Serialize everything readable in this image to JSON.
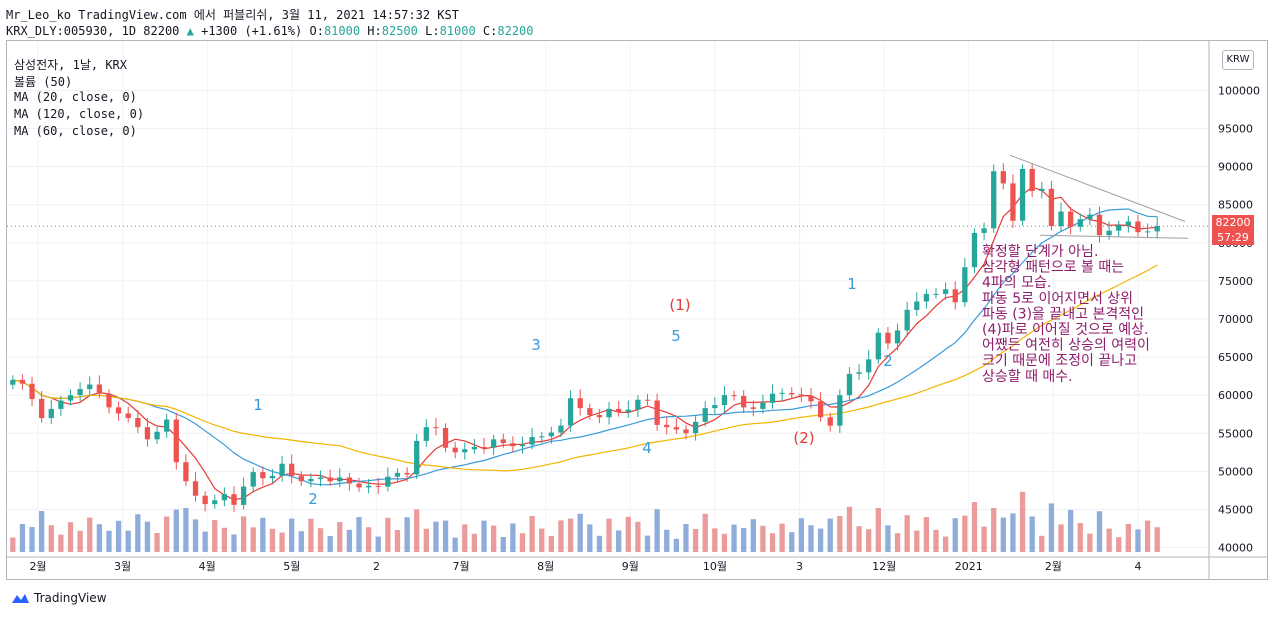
{
  "header": {
    "line1": "Mr_Leo_ko TradingView.com 에서 퍼블리쉬, 3월 11, 2021 14:57:32 KST",
    "symbol": "KRX_DLY:005930, 1D 82200",
    "change": "+1300 (+1.61%)",
    "o_label": "O:",
    "o_val": "81000",
    "h_label": "H:",
    "h_val": "82500",
    "l_label": "L:",
    "l_val": "81000",
    "c_label": "C:",
    "c_val": "82200"
  },
  "legend": [
    "삼성전자, 1날, KRX",
    "볼륨 (50)",
    "MA (20, close, 0)",
    "MA (120, close, 0)",
    "MA (60, close, 0)"
  ],
  "currency": "KRW",
  "price_label": "82200",
  "timer_label": "57:29",
  "colors": {
    "up": "#26a69a",
    "down": "#ef5350",
    "ma20": "#e53935",
    "ma60": "#3a9ad9",
    "ma120": "#f4b400",
    "vol_up": "#e68a8a",
    "vol_down": "#7b9fd4"
  },
  "branding": "TradingView",
  "chart_data": {
    "type": "candlestick",
    "y_ticks": [
      "100000",
      "95000",
      "90000",
      "85000",
      "80000",
      "75000",
      "70000",
      "65000",
      "60000",
      "55000",
      "50000",
      "45000",
      "40000"
    ],
    "ylim": [
      36000,
      104000
    ],
    "x_ticks": [
      "2월",
      "3월",
      "4월",
      "5월",
      "2",
      "7월",
      "8월",
      "9월",
      "10월",
      "3",
      "12월",
      "2021",
      "2월",
      "4"
    ],
    "closes": [
      62000,
      61500,
      59500,
      57000,
      58200,
      59300,
      60000,
      60800,
      61400,
      60200,
      58400,
      57600,
      57000,
      55800,
      54200,
      55200,
      56800,
      51200,
      48700,
      46800,
      45700,
      46200,
      47000,
      45600,
      48000,
      49900,
      49100,
      49400,
      51000,
      49400,
      48700,
      49000,
      49200,
      48700,
      49200,
      48400,
      47900,
      48100,
      48000,
      49300,
      49800,
      49600,
      54000,
      55800,
      55700,
      53100,
      52500,
      52900,
      53200,
      53100,
      54200,
      53700,
      53300,
      53500,
      54500,
      54600,
      55100,
      56000,
      59600,
      58300,
      57400,
      57100,
      58200,
      57800,
      58100,
      59400,
      59300,
      56100,
      55800,
      55500,
      55000,
      56500,
      58300,
      58700,
      60000,
      59900,
      58400,
      58200,
      59000,
      60200,
      60300,
      60100,
      59900,
      59200,
      57100,
      56000,
      60000,
      62800,
      63000,
      64700,
      68200,
      66800,
      68500,
      71200,
      72300,
      73300,
      73300,
      73900,
      72200,
      76800,
      81300,
      81900,
      89400,
      87800,
      82900,
      89700,
      86800,
      87100,
      82200,
      84100,
      82100,
      83100,
      83700,
      81000,
      81600,
      82300,
      82800,
      81400,
      81500,
      82200
    ],
    "annotations_wave": [
      "1",
      "2",
      "3",
      "4",
      "5",
      "(1)",
      "(2)",
      "1",
      "2"
    ],
    "triangle_lines": "upper trendline from 2021 peak descending, flat support near 81000",
    "note_lines": [
      "확정할 단계가 아님.",
      "삼각형 패턴으로 볼 때는",
      "4파의 모습.",
      "파동 5로 이어지면서 상위",
      "파동 (3)을 끝내고 본격적인",
      "(4)파로 이어질 것으로 예상.",
      "어쨌든 여전히 상승의 여력이",
      "크기 때문에 조정이 끝나고",
      "상승할 때 매수."
    ]
  }
}
